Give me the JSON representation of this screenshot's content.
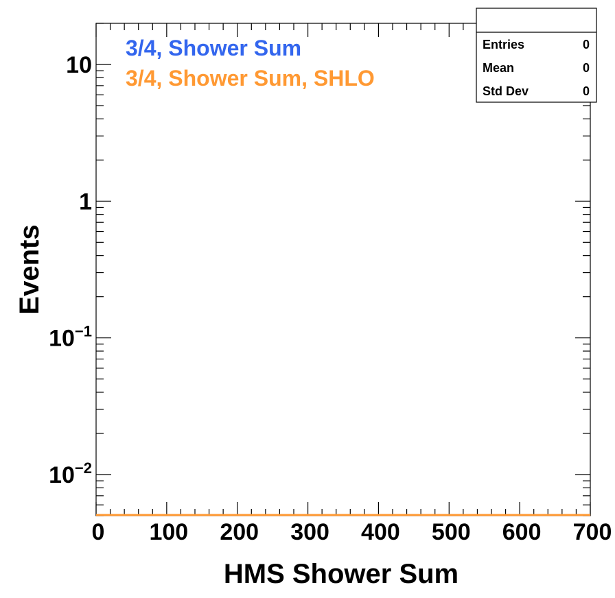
{
  "chart_data": {
    "type": "histogram",
    "xlabel": "HMS Shower Sum",
    "ylabel": "Events",
    "xlim": [
      0,
      700
    ],
    "ylim": [
      0.005,
      20
    ],
    "yscale": "log",
    "x_ticks": [
      "0",
      "100",
      "200",
      "300",
      "400",
      "500",
      "600",
      "700"
    ],
    "x_tick_values": [
      0,
      100,
      200,
      300,
      400,
      500,
      600,
      700
    ],
    "y_ticks": [
      {
        "value": 10,
        "base": "10",
        "exp": ""
      },
      {
        "value": 1,
        "base": "1",
        "exp": ""
      },
      {
        "value": 0.1,
        "base": "10",
        "exp": "−1"
      },
      {
        "value": 0.01,
        "base": "10",
        "exp": "−2"
      }
    ],
    "series": [
      {
        "name": "3/4, Shower Sum",
        "color": "#3366ee",
        "values": []
      },
      {
        "name": "3/4, Shower Sum, SHLO",
        "color": "#ff9933",
        "values": []
      }
    ],
    "stats": {
      "title": "",
      "rows": [
        {
          "label": "Entries",
          "value": "0"
        },
        {
          "label": "Mean",
          "value": "0"
        },
        {
          "label": "Std Dev",
          "value": "0"
        }
      ]
    },
    "legend_position": "top-left",
    "grid": false
  }
}
